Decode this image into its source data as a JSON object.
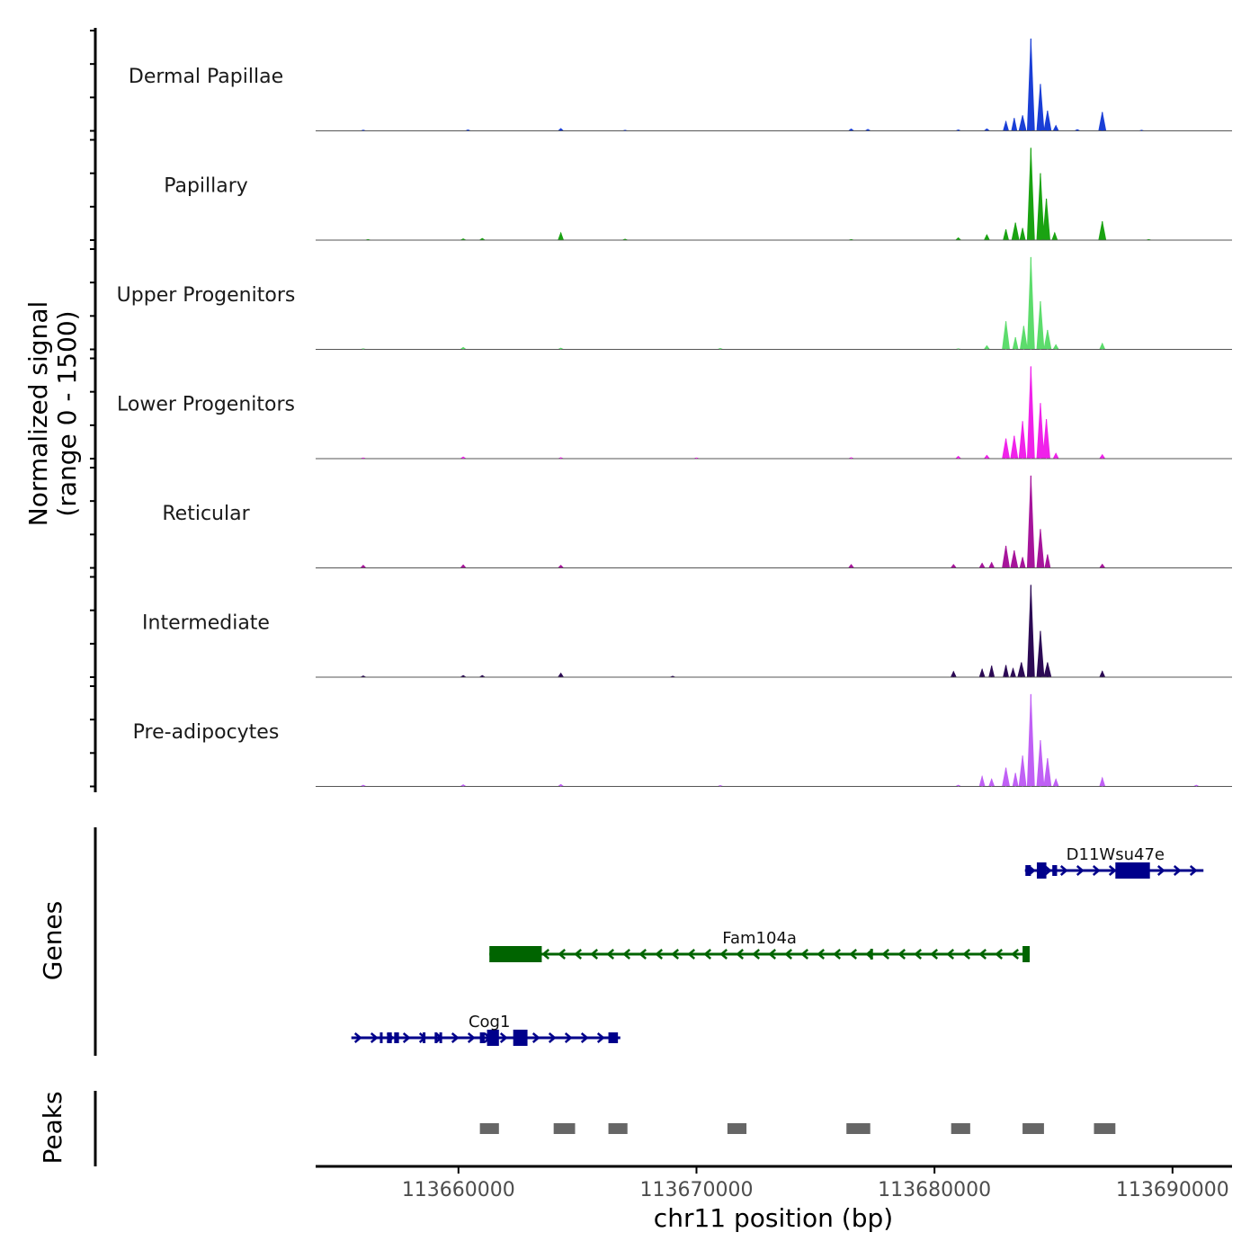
{
  "chart_data": {
    "type": "genome-track",
    "title": "",
    "y_axis_label_line1": "Normalized signal",
    "y_axis_label_line2": "(range 0 - 1500)",
    "y_range": [
      0,
      1500
    ],
    "x_axis_label": "chr11 position (bp)",
    "x_range": [
      113654000,
      113692500
    ],
    "x_ticks": [
      113660000,
      113670000,
      113680000,
      113690000
    ],
    "x_tick_labels": [
      "113660000",
      "113670000",
      "113680000",
      "113690000"
    ],
    "coverage_tracks": [
      {
        "name": "Dermal Papillae",
        "color": "#1a3fd6",
        "peaks": [
          [
            113656000,
            12
          ],
          [
            113660400,
            15
          ],
          [
            113664300,
            35
          ],
          [
            113667000,
            10
          ],
          [
            113676500,
            28
          ],
          [
            113677200,
            22
          ],
          [
            113681000,
            15
          ],
          [
            113682200,
            30
          ],
          [
            113683000,
            140
          ],
          [
            113683350,
            190
          ],
          [
            113683700,
            230
          ],
          [
            113684050,
            1380
          ],
          [
            113684450,
            700
          ],
          [
            113684750,
            300
          ],
          [
            113685100,
            80
          ],
          [
            113686000,
            20
          ],
          [
            113687050,
            280
          ],
          [
            113688700,
            10
          ]
        ]
      },
      {
        "name": "Papillary",
        "color": "#1aa312",
        "peaks": [
          [
            113656200,
            10
          ],
          [
            113660200,
            20
          ],
          [
            113661000,
            25
          ],
          [
            113664300,
            110
          ],
          [
            113667000,
            15
          ],
          [
            113676500,
            10
          ],
          [
            113681000,
            35
          ],
          [
            113682200,
            80
          ],
          [
            113683000,
            160
          ],
          [
            113683400,
            260
          ],
          [
            113683700,
            180
          ],
          [
            113684050,
            1380
          ],
          [
            113684450,
            1000
          ],
          [
            113684700,
            620
          ],
          [
            113685050,
            110
          ],
          [
            113687050,
            280
          ],
          [
            113689000,
            10
          ]
        ]
      },
      {
        "name": "Upper Progenitors",
        "color": "#5ddc6c",
        "peaks": [
          [
            113656000,
            10
          ],
          [
            113660200,
            30
          ],
          [
            113664300,
            20
          ],
          [
            113671000,
            15
          ],
          [
            113681000,
            10
          ],
          [
            113682200,
            55
          ],
          [
            113683000,
            420
          ],
          [
            113683400,
            180
          ],
          [
            113683750,
            350
          ],
          [
            113684050,
            1380
          ],
          [
            113684450,
            720
          ],
          [
            113684750,
            290
          ],
          [
            113685100,
            70
          ],
          [
            113687050,
            90
          ]
        ]
      },
      {
        "name": "Lower Progenitors",
        "color": "#f022ea",
        "peaks": [
          [
            113656000,
            12
          ],
          [
            113660200,
            25
          ],
          [
            113664300,
            15
          ],
          [
            113670000,
            12
          ],
          [
            113676500,
            15
          ],
          [
            113681000,
            35
          ],
          [
            113682200,
            50
          ],
          [
            113683000,
            300
          ],
          [
            113683350,
            340
          ],
          [
            113683700,
            560
          ],
          [
            113684050,
            1380
          ],
          [
            113684450,
            830
          ],
          [
            113684700,
            590
          ],
          [
            113685100,
            80
          ],
          [
            113687050,
            60
          ]
        ]
      },
      {
        "name": "Reticular",
        "color": "#a6159b",
        "peaks": [
          [
            113656000,
            40
          ],
          [
            113660200,
            45
          ],
          [
            113664300,
            40
          ],
          [
            113676500,
            50
          ],
          [
            113680800,
            50
          ],
          [
            113682000,
            70
          ],
          [
            113682400,
            80
          ],
          [
            113683000,
            330
          ],
          [
            113683350,
            260
          ],
          [
            113683700,
            160
          ],
          [
            113684050,
            1380
          ],
          [
            113684450,
            580
          ],
          [
            113684750,
            200
          ],
          [
            113687050,
            55
          ]
        ]
      },
      {
        "name": "Intermediate",
        "color": "#2c0a55",
        "peaks": [
          [
            113656000,
            20
          ],
          [
            113660200,
            25
          ],
          [
            113661000,
            25
          ],
          [
            113664300,
            60
          ],
          [
            113669000,
            15
          ],
          [
            113680800,
            85
          ],
          [
            113682000,
            120
          ],
          [
            113682400,
            170
          ],
          [
            113683000,
            180
          ],
          [
            113683300,
            130
          ],
          [
            113683650,
            220
          ],
          [
            113684050,
            1380
          ],
          [
            113684450,
            690
          ],
          [
            113684750,
            220
          ],
          [
            113687050,
            90
          ]
        ]
      },
      {
        "name": "Pre-adipocytes",
        "color": "#c060f5",
        "peaks": [
          [
            113656000,
            20
          ],
          [
            113660200,
            25
          ],
          [
            113664300,
            30
          ],
          [
            113671000,
            15
          ],
          [
            113681000,
            20
          ],
          [
            113682000,
            150
          ],
          [
            113682400,
            110
          ],
          [
            113683000,
            280
          ],
          [
            113683400,
            200
          ],
          [
            113683700,
            460
          ],
          [
            113684050,
            1380
          ],
          [
            113684450,
            690
          ],
          [
            113684750,
            420
          ],
          [
            113685100,
            110
          ],
          [
            113687050,
            130
          ],
          [
            113691000,
            20
          ]
        ]
      }
    ],
    "genes_label": "Genes",
    "genes": [
      {
        "name": "D11Wsu47e",
        "strand": "+",
        "color": "#00008b",
        "start": 113683800,
        "end": 113691300,
        "exons": [
          [
            113683820,
            113684050,
            "small"
          ],
          [
            113684300,
            113684700,
            "large"
          ],
          [
            113684950,
            113685150,
            "small"
          ],
          [
            113687600,
            113689050,
            "large"
          ]
        ]
      },
      {
        "name": "Fam104a",
        "strand": "-",
        "color": "#006400",
        "start": 113661300,
        "end": 113684000,
        "exons": [
          [
            113661300,
            113663500,
            "large"
          ],
          [
            113677300,
            113677350,
            "small"
          ],
          [
            113683700,
            113684000,
            "large"
          ]
        ]
      },
      {
        "name": "Cog1",
        "strand": "+",
        "color": "#00008b",
        "start": 113655500,
        "end": 113666800,
        "exons": [
          [
            113656700,
            113656800,
            "small"
          ],
          [
            113657000,
            113657200,
            "small"
          ],
          [
            113657300,
            113657500,
            "small"
          ],
          [
            113658500,
            113658600,
            "small"
          ],
          [
            113659000,
            113659100,
            "small"
          ],
          [
            113659200,
            113659300,
            "small"
          ],
          [
            113660900,
            113661100,
            "small"
          ],
          [
            113661200,
            113661700,
            "large"
          ],
          [
            113662300,
            113662900,
            "large"
          ],
          [
            113666300,
            113666700,
            "small"
          ]
        ]
      }
    ],
    "peaks_label": "Peaks",
    "peak_regions": [
      [
        113660900,
        113661700
      ],
      [
        113664000,
        113664900
      ],
      [
        113666300,
        113667100
      ],
      [
        113671300,
        113672100
      ],
      [
        113676300,
        113677300
      ],
      [
        113680700,
        113681500
      ],
      [
        113683700,
        113684600
      ],
      [
        113686700,
        113687600
      ]
    ]
  }
}
